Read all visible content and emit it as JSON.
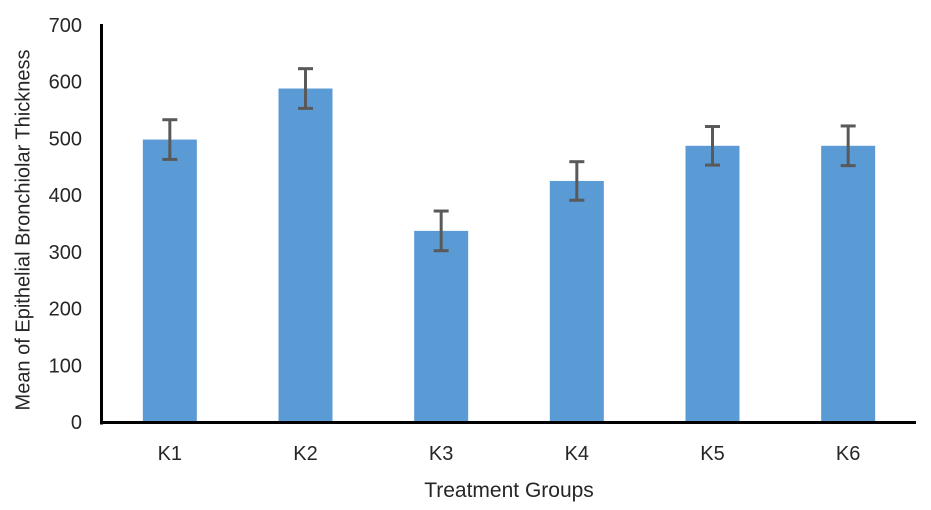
{
  "chart_data": {
    "type": "bar",
    "title": "",
    "categories": [
      "K1",
      "K2",
      "K3",
      "K4",
      "K5",
      "K6"
    ],
    "values": [
      498,
      588,
      337,
      425,
      487,
      487
    ],
    "errors": [
      35,
      35,
      35,
      34,
      34,
      35
    ],
    "xlabel": "Treatment Groups",
    "ylabel": "Mean of Epithelial Bronchiolar Thickness",
    "ylim": [
      0,
      700
    ],
    "yticks": [
      0,
      100,
      200,
      300,
      400,
      500,
      600,
      700
    ],
    "grid": false,
    "legend": false,
    "bar_color": "#5B9BD5",
    "error_bar_color": "#595959",
    "axis_line_color": "#000000",
    "text_color": "#262626"
  }
}
